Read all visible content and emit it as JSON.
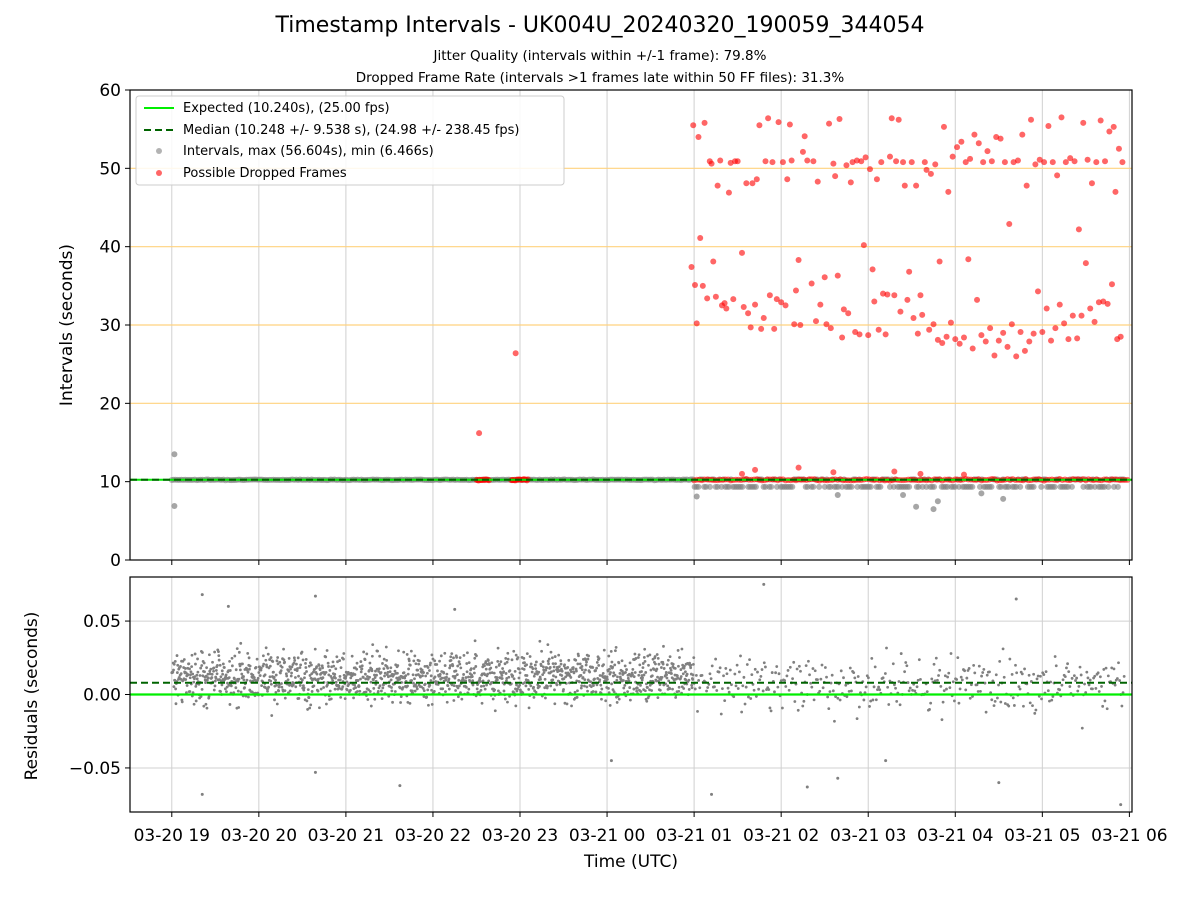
{
  "chart_data": [
    {
      "type": "scatter",
      "title": "Timestamp Intervals - UK004U_20240320_190059_344054",
      "subtitles": [
        "Jitter Quality (intervals within +/-1 frame): 79.8%",
        "Dropped Frame Rate (intervals >1 frames late within 50 FF files): 31.3%"
      ],
      "xlabel": "Time (UTC)",
      "ylabel": "Intervals (seconds)",
      "ylim": [
        0,
        60
      ],
      "yticks": [
        0,
        10,
        20,
        30,
        40,
        50,
        60
      ],
      "x_range_hours": [
        18.52,
        30.03
      ],
      "xticks": [
        {
          "label": "03-20 19",
          "hour": 19
        },
        {
          "label": "03-20 20",
          "hour": 20
        },
        {
          "label": "03-20 21",
          "hour": 21
        },
        {
          "label": "03-20 22",
          "hour": 22
        },
        {
          "label": "03-20 23",
          "hour": 23
        },
        {
          "label": "03-21 00",
          "hour": 24
        },
        {
          "label": "03-21 01",
          "hour": 25
        },
        {
          "label": "03-21 02",
          "hour": 26
        },
        {
          "label": "03-21 03",
          "hour": 27
        },
        {
          "label": "03-21 04",
          "hour": 28
        },
        {
          "label": "03-21 05",
          "hour": 29
        },
        {
          "label": "03-21 06",
          "hour": 30
        }
      ],
      "grid": "x",
      "frame_lines": [
        20,
        30,
        40,
        50
      ],
      "legend_position": "top-left",
      "legend": [
        "Expected (10.240s), (25.00 fps)",
        "Median (10.248 +/- 9.538 s), (24.98 +/- 238.45 fps)",
        "Intervals, max (56.604s), min (6.466s)",
        "Possible Dropped Frames"
      ],
      "expected_line": 10.24,
      "median_line": 10.248,
      "intervals_summary": {
        "max": 56.604,
        "min": 6.466,
        "baseline": 10.24
      },
      "interval_outliers": [
        [
          19.03,
          13.5
        ],
        [
          19.03,
          6.9
        ],
        [
          25.03,
          8.1
        ],
        [
          27.4,
          8.3
        ],
        [
          27.55,
          6.8
        ],
        [
          27.75,
          6.5
        ],
        [
          27.8,
          7.5
        ],
        [
          28.55,
          7.8
        ],
        [
          28.3,
          8.5
        ],
        [
          26.65,
          8.3
        ]
      ],
      "dropped_frames": [
        [
          22.53,
          16.2
        ],
        [
          22.95,
          26.4
        ],
        [
          24.97,
          37.4
        ],
        [
          24.99,
          55.5
        ],
        [
          25.01,
          35.1
        ],
        [
          25.03,
          30.2
        ],
        [
          25.05,
          54.0
        ],
        [
          25.07,
          41.1
        ],
        [
          25.1,
          35.0
        ],
        [
          25.12,
          55.8
        ],
        [
          25.15,
          33.4
        ],
        [
          25.18,
          50.9
        ],
        [
          25.2,
          50.6
        ],
        [
          25.22,
          38.1
        ],
        [
          25.25,
          33.6
        ],
        [
          25.27,
          47.8
        ],
        [
          25.3,
          51.0
        ],
        [
          25.32,
          32.5
        ],
        [
          25.35,
          32.8
        ],
        [
          25.37,
          32.1
        ],
        [
          25.4,
          46.9
        ],
        [
          25.42,
          50.7
        ],
        [
          25.45,
          33.3
        ],
        [
          25.47,
          50.9
        ],
        [
          25.5,
          50.9
        ],
        [
          25.55,
          39.2
        ],
        [
          25.57,
          32.3
        ],
        [
          25.6,
          48.1
        ],
        [
          25.62,
          31.5
        ],
        [
          25.65,
          29.7
        ],
        [
          25.67,
          48.1
        ],
        [
          25.7,
          32.6
        ],
        [
          25.72,
          48.6
        ],
        [
          25.75,
          55.5
        ],
        [
          25.77,
          29.5
        ],
        [
          25.8,
          30.9
        ],
        [
          25.82,
          50.9
        ],
        [
          25.85,
          56.4
        ],
        [
          25.87,
          33.8
        ],
        [
          25.9,
          50.8
        ],
        [
          25.92,
          29.5
        ],
        [
          25.95,
          33.3
        ],
        [
          25.97,
          55.9
        ],
        [
          26.0,
          32.9
        ],
        [
          26.02,
          50.8
        ],
        [
          26.05,
          32.5
        ],
        [
          26.07,
          48.6
        ],
        [
          26.1,
          55.6
        ],
        [
          26.12,
          51.0
        ],
        [
          26.15,
          30.1
        ],
        [
          26.17,
          34.4
        ],
        [
          26.2,
          38.3
        ],
        [
          26.22,
          30.0
        ],
        [
          26.25,
          52.1
        ],
        [
          26.27,
          54.1
        ],
        [
          26.3,
          51.0
        ],
        [
          26.35,
          35.3
        ],
        [
          26.37,
          50.9
        ],
        [
          26.4,
          30.5
        ],
        [
          26.42,
          48.3
        ],
        [
          26.45,
          32.6
        ],
        [
          26.5,
          36.1
        ],
        [
          26.52,
          30.1
        ],
        [
          26.55,
          55.7
        ],
        [
          26.57,
          29.6
        ],
        [
          26.6,
          50.6
        ],
        [
          26.62,
          49.0
        ],
        [
          26.65,
          36.3
        ],
        [
          26.67,
          56.3
        ],
        [
          26.7,
          28.4
        ],
        [
          26.72,
          32.0
        ],
        [
          26.75,
          50.4
        ],
        [
          26.77,
          31.5
        ],
        [
          26.8,
          48.2
        ],
        [
          26.82,
          50.8
        ],
        [
          26.85,
          29.1
        ],
        [
          26.87,
          51.0
        ],
        [
          26.9,
          28.8
        ],
        [
          26.92,
          50.9
        ],
        [
          26.95,
          40.2
        ],
        [
          26.97,
          51.4
        ],
        [
          27.0,
          28.7
        ],
        [
          27.02,
          49.9
        ],
        [
          27.05,
          37.1
        ],
        [
          27.07,
          33.0
        ],
        [
          27.1,
          48.6
        ],
        [
          27.12,
          29.4
        ],
        [
          27.15,
          50.8
        ],
        [
          27.17,
          34.0
        ],
        [
          27.2,
          28.8
        ],
        [
          27.22,
          33.9
        ],
        [
          27.25,
          51.5
        ],
        [
          27.27,
          56.4
        ],
        [
          27.3,
          33.8
        ],
        [
          27.32,
          50.9
        ],
        [
          27.35,
          56.2
        ],
        [
          27.37,
          31.7
        ],
        [
          27.4,
          50.8
        ],
        [
          27.42,
          47.8
        ],
        [
          27.45,
          33.2
        ],
        [
          27.47,
          36.8
        ],
        [
          27.5,
          50.8
        ],
        [
          27.52,
          30.9
        ],
        [
          27.55,
          47.8
        ],
        [
          27.57,
          28.9
        ],
        [
          27.6,
          33.8
        ],
        [
          27.62,
          31.3
        ],
        [
          27.65,
          50.8
        ],
        [
          27.67,
          49.8
        ],
        [
          27.7,
          29.4
        ],
        [
          27.72,
          49.3
        ],
        [
          27.75,
          30.1
        ],
        [
          27.77,
          50.5
        ],
        [
          27.8,
          28.1
        ],
        [
          27.82,
          38.1
        ],
        [
          27.85,
          27.7
        ],
        [
          27.87,
          55.3
        ],
        [
          27.9,
          28.5
        ],
        [
          27.92,
          47.0
        ],
        [
          27.95,
          30.3
        ],
        [
          27.97,
          51.5
        ],
        [
          28.0,
          28.2
        ],
        [
          28.02,
          52.7
        ],
        [
          28.05,
          27.6
        ],
        [
          28.07,
          53.4
        ],
        [
          28.1,
          28.4
        ],
        [
          28.12,
          50.8
        ],
        [
          28.15,
          38.4
        ],
        [
          28.17,
          51.2
        ],
        [
          28.2,
          27.0
        ],
        [
          28.22,
          54.3
        ],
        [
          28.25,
          33.2
        ],
        [
          28.27,
          53.2
        ],
        [
          28.3,
          28.7
        ],
        [
          28.32,
          50.8
        ],
        [
          28.35,
          27.9
        ],
        [
          28.37,
          52.2
        ],
        [
          28.4,
          29.6
        ],
        [
          28.42,
          50.9
        ],
        [
          28.45,
          26.1
        ],
        [
          28.47,
          54.0
        ],
        [
          28.5,
          28.0
        ],
        [
          28.52,
          53.8
        ],
        [
          28.55,
          29.0
        ],
        [
          28.57,
          50.8
        ],
        [
          28.6,
          27.2
        ],
        [
          28.62,
          42.9
        ],
        [
          28.65,
          30.1
        ],
        [
          28.67,
          50.8
        ],
        [
          28.7,
          26.0
        ],
        [
          28.72,
          51.0
        ],
        [
          28.75,
          29.1
        ],
        [
          28.77,
          54.3
        ],
        [
          28.8,
          26.7
        ],
        [
          28.82,
          47.8
        ],
        [
          28.85,
          27.9
        ],
        [
          28.87,
          56.2
        ],
        [
          28.9,
          28.9
        ],
        [
          28.92,
          50.5
        ],
        [
          28.95,
          34.3
        ],
        [
          28.97,
          51.1
        ],
        [
          29.0,
          29.1
        ],
        [
          29.02,
          50.8
        ],
        [
          29.05,
          32.1
        ],
        [
          29.07,
          55.4
        ],
        [
          29.1,
          28.0
        ],
        [
          29.12,
          50.8
        ],
        [
          29.15,
          29.6
        ],
        [
          29.17,
          49.1
        ],
        [
          29.2,
          32.6
        ],
        [
          29.22,
          56.5
        ],
        [
          29.25,
          30.2
        ],
        [
          29.27,
          50.8
        ],
        [
          29.3,
          28.2
        ],
        [
          29.32,
          51.3
        ],
        [
          29.35,
          31.2
        ],
        [
          29.37,
          50.9
        ],
        [
          29.4,
          28.3
        ],
        [
          29.42,
          42.2
        ],
        [
          29.45,
          31.2
        ],
        [
          29.47,
          55.8
        ],
        [
          29.5,
          37.9
        ],
        [
          29.52,
          51.1
        ],
        [
          29.55,
          32.1
        ],
        [
          29.57,
          48.1
        ],
        [
          29.6,
          30.4
        ],
        [
          29.62,
          50.8
        ],
        [
          29.65,
          32.9
        ],
        [
          29.67,
          56.1
        ],
        [
          29.7,
          33.0
        ],
        [
          29.72,
          50.9
        ],
        [
          29.75,
          32.7
        ],
        [
          29.77,
          54.7
        ],
        [
          29.8,
          35.2
        ],
        [
          29.82,
          55.3
        ],
        [
          29.84,
          47.0
        ],
        [
          29.86,
          28.2
        ],
        [
          29.88,
          52.5
        ],
        [
          29.9,
          28.5
        ],
        [
          29.92,
          50.8
        ],
        [
          25.55,
          11.0
        ],
        [
          25.7,
          11.5
        ],
        [
          26.2,
          11.8
        ],
        [
          26.6,
          11.2
        ],
        [
          27.3,
          11.3
        ],
        [
          27.6,
          11.0
        ],
        [
          28.1,
          10.9
        ]
      ],
      "dropped_bands": [
        [
          22.5,
          22.65,
          10.24
        ],
        [
          22.9,
          23.1,
          10.24
        ],
        [
          25.0,
          30.0,
          10.24
        ]
      ]
    },
    {
      "type": "scatter",
      "ylabel": "Residuals (seconds)",
      "ylim": [
        -0.08,
        0.08
      ],
      "yticks": [
        {
          "label": "0.05",
          "value": 0.05
        },
        {
          "label": "0.00",
          "value": 0.0
        },
        {
          "label": "−0.05",
          "value": -0.05
        }
      ],
      "grid": "both",
      "expected_line": 0.0,
      "median_line": 0.008,
      "residual_summary": {
        "dense_range_hours": [
          19.0,
          25.0
        ],
        "sparse_range_hours": [
          25.0,
          29.95
        ],
        "typical_spread": [
          -0.04,
          0.05
        ]
      },
      "residual_outliers": [
        [
          19.35,
          0.068
        ],
        [
          19.35,
          -0.068
        ],
        [
          19.65,
          0.06
        ],
        [
          20.65,
          0.067
        ],
        [
          20.65,
          -0.053
        ],
        [
          21.62,
          -0.062
        ],
        [
          22.25,
          0.058
        ],
        [
          24.05,
          -0.045
        ],
        [
          25.2,
          -0.068
        ],
        [
          25.8,
          0.075
        ],
        [
          26.3,
          -0.063
        ],
        [
          26.65,
          -0.057
        ],
        [
          27.2,
          -0.045
        ],
        [
          28.5,
          -0.06
        ],
        [
          28.7,
          0.065
        ],
        [
          29.9,
          -0.075
        ]
      ]
    }
  ],
  "colors": {
    "expected": "#00ee00",
    "median": "#006400",
    "intervals": "#808080",
    "dropped": "#ff0000",
    "frame_lines": "#ffd27f",
    "grid": "#d0d0d0"
  }
}
